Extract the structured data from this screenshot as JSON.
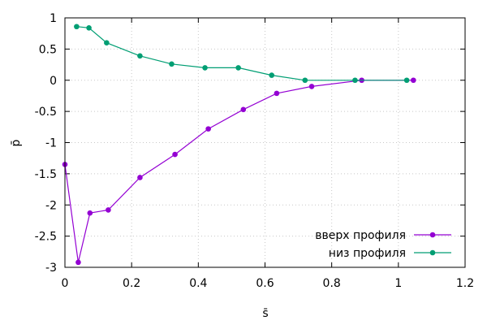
{
  "chart_data": {
    "type": "line",
    "xlabel": "s̄",
    "ylabel": "p̄",
    "xlim": [
      0,
      1.2
    ],
    "ylim": [
      -3,
      1
    ],
    "xticks": [
      0,
      0.2,
      0.4,
      0.6,
      0.8,
      1,
      1.2
    ],
    "yticks": [
      -3,
      -2.5,
      -2,
      -1.5,
      -1,
      -0.5,
      0,
      0.5,
      1
    ],
    "grid": true,
    "legend_position": "bottom-right",
    "series": [
      {
        "name": "вверх профиля",
        "color": "#9400d3",
        "x": [
          0,
          0.04,
          0.075,
          0.13,
          0.225,
          0.33,
          0.43,
          0.535,
          0.635,
          0.74,
          0.89,
          1.045
        ],
        "y": [
          -1.35,
          -2.92,
          -2.13,
          -2.08,
          -1.56,
          -1.19,
          -0.78,
          -0.47,
          -0.21,
          -0.1,
          0,
          0
        ]
      },
      {
        "name": "низ профиля",
        "color": "#009e73",
        "x": [
          0.035,
          0.072,
          0.125,
          0.225,
          0.32,
          0.42,
          0.52,
          0.62,
          0.72,
          0.87,
          1.025
        ],
        "y": [
          0.86,
          0.84,
          0.6,
          0.39,
          0.26,
          0.2,
          0.2,
          0.08,
          0,
          0,
          0
        ]
      }
    ]
  }
}
